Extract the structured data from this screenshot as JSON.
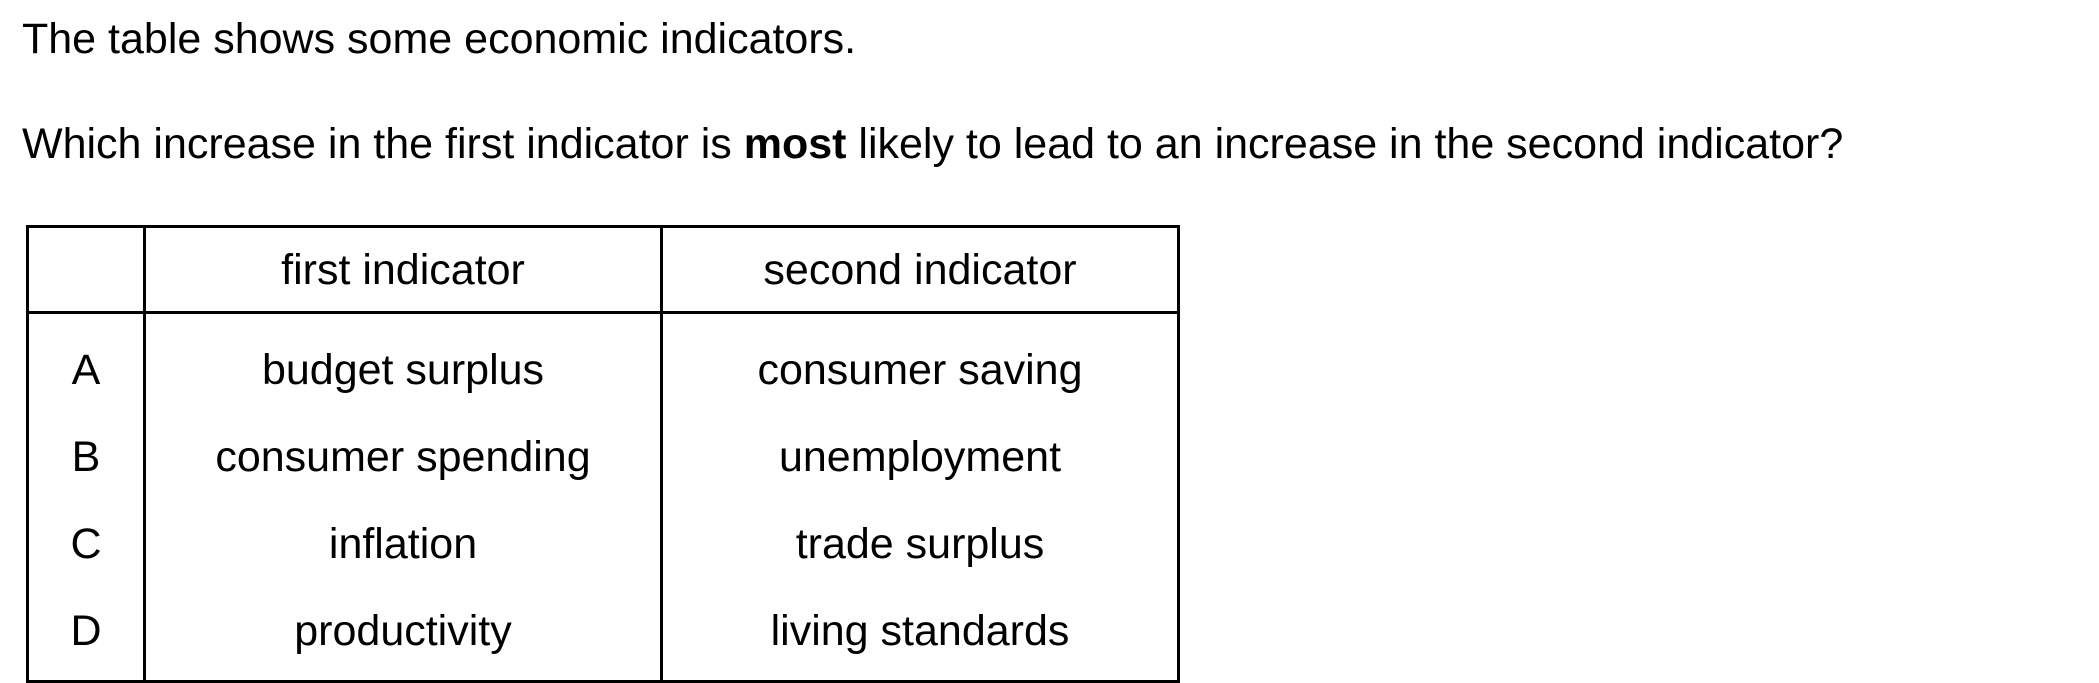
{
  "intro": "The table shows some economic indicators.",
  "question": {
    "before": "Which increase in the first indicator is ",
    "emphasis": "most",
    "after": " likely to lead to an increase in the second indicator?"
  },
  "table": {
    "headers": [
      "",
      "first indicator",
      "second indicator"
    ],
    "rows": [
      {
        "option": "A",
        "first": "budget surplus",
        "second": "consumer saving"
      },
      {
        "option": "B",
        "first": "consumer spending",
        "second": "unemployment"
      },
      {
        "option": "C",
        "first": "inflation",
        "second": "trade surplus"
      },
      {
        "option": "D",
        "first": "productivity",
        "second": "living standards"
      }
    ]
  }
}
